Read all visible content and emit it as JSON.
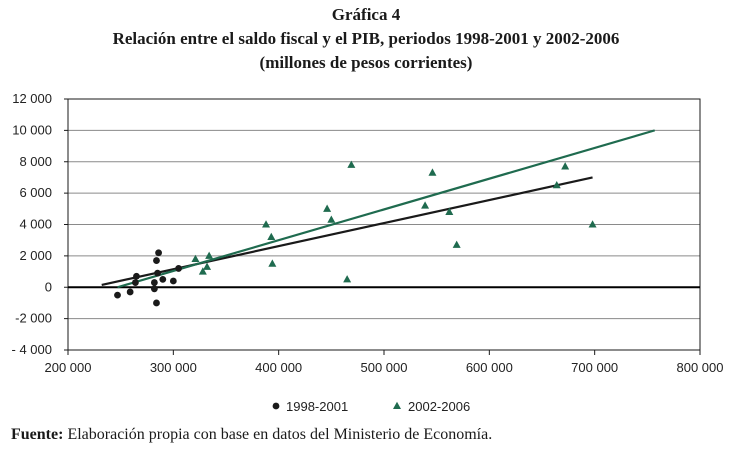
{
  "figure": {
    "number": "Gráfica 4",
    "title": "Relación entre el saldo fiscal y el PIB, periodos 1998-2001 y 2002-2006",
    "subtitle": "(millones de pesos corrientes)"
  },
  "source": {
    "label": "Fuente:",
    "text": " Elaboración propia con base en datos del Ministerio de Economía."
  },
  "chart_data": {
    "type": "scatter",
    "title": "Relación entre el saldo fiscal y el PIB, periodos 1998-2001 y 2002-2006",
    "xlabel": "",
    "ylabel": "",
    "xlim": [
      200000,
      800000
    ],
    "ylim": [
      -4000,
      12000
    ],
    "x_ticks": [
      200000,
      300000,
      400000,
      500000,
      600000,
      700000,
      800000
    ],
    "y_ticks": [
      -4000,
      -2000,
      0,
      2000,
      4000,
      6000,
      8000,
      10000,
      12000
    ],
    "x_tick_labels": [
      "200 000",
      "300 000",
      "400 000",
      "500 000",
      "600 000",
      "700 000",
      "800 000"
    ],
    "y_tick_labels": [
      "- 4 000",
      "-2 000",
      "0",
      "2 000",
      "4 000",
      "6 000",
      "8 000",
      "10 000",
      "12 000"
    ],
    "legend_position": "bottom",
    "series": [
      {
        "name": "1998-2001",
        "marker": "circle",
        "color": "#1a1a1a",
        "points": [
          [
            247000,
            -500
          ],
          [
            259000,
            -300
          ],
          [
            264000,
            300
          ],
          [
            265000,
            700
          ],
          [
            282000,
            300
          ],
          [
            282000,
            -100
          ],
          [
            284000,
            1700
          ],
          [
            285000,
            900
          ],
          [
            286000,
            2200
          ],
          [
            284000,
            -1000
          ],
          [
            290000,
            500
          ],
          [
            300000,
            400
          ],
          [
            305000,
            1200
          ]
        ],
        "trend": [
          [
            232000,
            150
          ],
          [
            698000,
            7000
          ]
        ]
      },
      {
        "name": "2002-2006",
        "marker": "triangle",
        "color": "#1f6b4f",
        "points": [
          [
            321000,
            1800
          ],
          [
            328000,
            1000
          ],
          [
            332000,
            1300
          ],
          [
            334000,
            2000
          ],
          [
            388000,
            4000
          ],
          [
            393000,
            3200
          ],
          [
            394000,
            1500
          ],
          [
            446000,
            5000
          ],
          [
            450000,
            4300
          ],
          [
            465000,
            500
          ],
          [
            469000,
            7800
          ],
          [
            539000,
            5200
          ],
          [
            546000,
            7300
          ],
          [
            562000,
            4800
          ],
          [
            569000,
            2700
          ],
          [
            664000,
            6500
          ],
          [
            672000,
            7700
          ],
          [
            698000,
            4000
          ]
        ],
        "trend": [
          [
            247000,
            0
          ],
          [
            757000,
            10000
          ]
        ]
      }
    ]
  }
}
